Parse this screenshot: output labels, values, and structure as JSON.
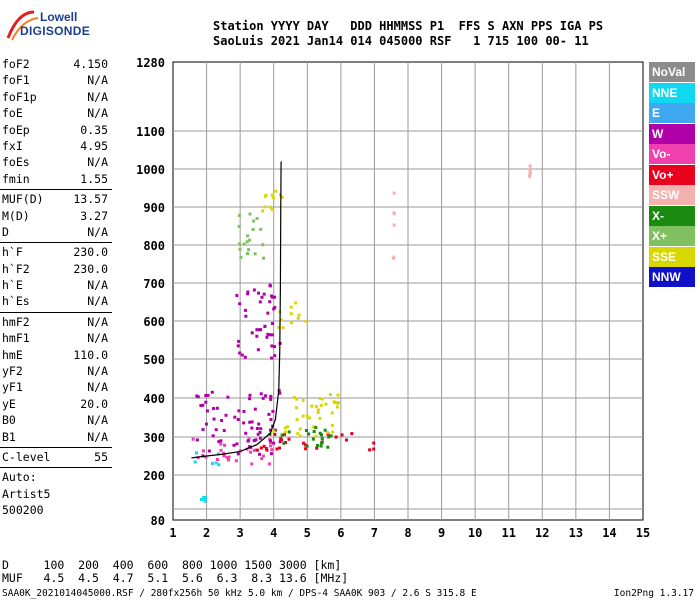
{
  "logo": {
    "line1": "Lowell",
    "line2": "DIGISONDE"
  },
  "header": {
    "line1": "Station YYYY DAY   DDD HHMMSS P1  FFS S AXN PPS IGA PS",
    "line2": "SaoLuis 2021 Jan14 014 045000 RSF   1 715 100 00- 11"
  },
  "params": [
    {
      "name": "foF2",
      "value": "4.150"
    },
    {
      "name": "foF1",
      "value": "N/A"
    },
    {
      "name": "foF1p",
      "value": "N/A"
    },
    {
      "name": "foE",
      "value": "N/A"
    },
    {
      "name": "foEp",
      "value": "0.35"
    },
    {
      "name": "fxI",
      "value": "4.95"
    },
    {
      "name": "foEs",
      "value": "N/A"
    },
    {
      "name": "fmin",
      "value": "1.55",
      "sep_after": true
    },
    {
      "name": "MUF(D)",
      "value": "13.57"
    },
    {
      "name": "M(D)",
      "value": "3.27"
    },
    {
      "name": "D",
      "value": "N/A",
      "sep_after": true
    },
    {
      "name": "h`F",
      "value": "230.0"
    },
    {
      "name": "h`F2",
      "value": "230.0"
    },
    {
      "name": "h`E",
      "value": "N/A"
    },
    {
      "name": "h`Es",
      "value": "N/A",
      "sep_after": true
    },
    {
      "name": "hmF2",
      "value": "N/A"
    },
    {
      "name": "hmF1",
      "value": "N/A"
    },
    {
      "name": "hmE",
      "value": "110.0"
    },
    {
      "name": "yF2",
      "value": "N/A"
    },
    {
      "name": "yF1",
      "value": "N/A"
    },
    {
      "name": "yE",
      "value": "20.0"
    },
    {
      "name": "B0",
      "value": "N/A"
    },
    {
      "name": "B1",
      "value": "N/A",
      "sep_after": true
    },
    {
      "name": "C-level",
      "value": "55",
      "sep_after": true
    },
    {
      "name": "Auto:",
      "value": ""
    },
    {
      "name": "Artist5",
      "value": ""
    },
    {
      "name": "500200",
      "value": ""
    }
  ],
  "legend": [
    {
      "label": "NoVal",
      "color": "#8c8c8c"
    },
    {
      "label": "NNE",
      "color": "#10d8f0"
    },
    {
      "label": "E",
      "color": "#3fa8f0"
    },
    {
      "label": "W",
      "color": "#b000a8"
    },
    {
      "label": "Vo-",
      "color": "#f040b0"
    },
    {
      "label": "Vo+",
      "color": "#e8001c"
    },
    {
      "label": "SSW",
      "color": "#f5b0b0"
    },
    {
      "label": "X-",
      "color": "#1a8a10"
    },
    {
      "label": "X+",
      "color": "#80c060"
    },
    {
      "label": "SSE",
      "color": "#d8d800"
    },
    {
      "label": "NNW",
      "color": "#1010c8"
    }
  ],
  "footer": {
    "line1": "D     100  200  400  600  800 1000 1500 3000 [km]",
    "line2": "MUF   4.5  4.5  4.7  5.1  5.6  6.3  8.3 13.6 [MHz]"
  },
  "bottom_line": "SAA0K_2021014045000.RSF / 280fx256h 50 kHz 5.0 km / DPS-4 SAA0K 903 / 2.6 S 315.8 E",
  "version": "Ion2Png 1.3.17",
  "chart_data": {
    "type": "scatter",
    "title": "",
    "xlabel": "",
    "ylabel": "",
    "xlim": [
      1,
      15
    ],
    "ylim": [
      80,
      1280
    ],
    "y_scale": "custom-ionogram",
    "x_ticks": [
      "1",
      "2",
      "3",
      "4",
      "5",
      "6",
      "7",
      "8",
      "9",
      "10",
      "11",
      "12",
      "13",
      "14",
      "15"
    ],
    "y_ticks": [
      {
        "value": 80,
        "label": "80"
      },
      {
        "value": 100,
        "label": ""
      },
      {
        "value": 200,
        "label": "200"
      },
      {
        "value": 300,
        "label": "300"
      },
      {
        "value": 400,
        "label": "400"
      },
      {
        "value": 500,
        "label": "500"
      },
      {
        "value": 600,
        "label": "600"
      },
      {
        "value": 700,
        "label": "700"
      },
      {
        "value": 800,
        "label": "800"
      },
      {
        "value": 900,
        "label": "900"
      },
      {
        "value": 1000,
        "label": "1000"
      },
      {
        "value": 1100,
        "label": "1100"
      },
      {
        "value": 1280,
        "label": "1280"
      }
    ],
    "grid": true,
    "trace": [
      [
        1.55,
        245
      ],
      [
        2.0,
        250
      ],
      [
        2.5,
        255
      ],
      [
        3.0,
        262
      ],
      [
        3.5,
        280
      ],
      [
        3.9,
        310
      ],
      [
        4.05,
        345
      ],
      [
        4.15,
        420
      ],
      [
        4.18,
        520
      ],
      [
        4.2,
        700
      ],
      [
        4.21,
        900
      ],
      [
        4.22,
        1020
      ]
    ],
    "clusters": [
      {
        "series": "Vo-",
        "x": [
          1.6,
          4.1
        ],
        "y": [
          225,
          300
        ]
      },
      {
        "series": "W",
        "x": [
          1.7,
          4.2
        ],
        "y": [
          250,
          420
        ]
      },
      {
        "series": "Vo+",
        "x": [
          3.5,
          7.0
        ],
        "y": [
          265,
          310
        ]
      },
      {
        "series": "SSE",
        "x": [
          4.0,
          6.0
        ],
        "y": [
          300,
          410
        ]
      },
      {
        "series": "X-",
        "x": [
          3.8,
          5.8
        ],
        "y": [
          270,
          330
        ]
      },
      {
        "series": "NNE",
        "x": [
          1.6,
          2.4
        ],
        "y": [
          225,
          260
        ]
      },
      {
        "series": "SSE",
        "x": [
          4.1,
          5.0
        ],
        "y": [
          580,
          650
        ]
      },
      {
        "series": "W",
        "x": [
          2.9,
          4.2
        ],
        "y": [
          500,
          700
        ]
      },
      {
        "series": "SSE",
        "x": [
          3.5,
          4.3
        ],
        "y": [
          880,
          960
        ]
      },
      {
        "series": "X+",
        "x": [
          2.9,
          3.7
        ],
        "y": [
          760,
          900
        ]
      },
      {
        "series": "NNE",
        "x": [
          1.8,
          2.0
        ],
        "y": [
          120,
          135
        ]
      },
      {
        "series": "SSW",
        "x": [
          7.55,
          7.6
        ],
        "y": [
          760,
          940
        ]
      },
      {
        "series": "SSW",
        "x": [
          11.6,
          11.65
        ],
        "y": [
          980,
          1010
        ]
      }
    ]
  }
}
